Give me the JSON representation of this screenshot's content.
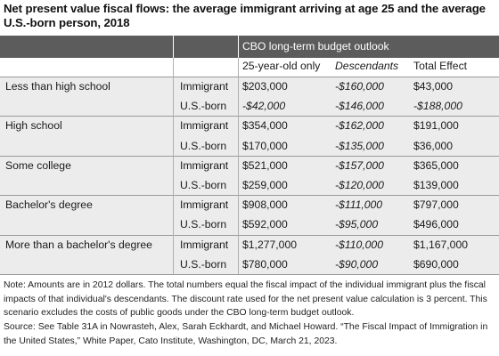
{
  "title": "Net present value fiscal flows: the average immigrant arriving at age 25 and the average U.S.-born person, 2018",
  "header": {
    "group_label": "CBO long-term budget outlook",
    "col_25": "25-year-old only",
    "col_desc": "Descendants",
    "col_total": "Total Effect"
  },
  "rows": [
    {
      "category": "Less than high school",
      "group": "Immigrant",
      "v25": "$203,000",
      "desc": "-$160,000",
      "total": "$43,000",
      "italic25": false,
      "italictotal": false
    },
    {
      "category": "",
      "group": "U.S.-born",
      "v25": "-$42,000",
      "desc": "-$146,000",
      "total": "-$188,000",
      "italic25": true,
      "italictotal": true
    },
    {
      "category": "High school",
      "group": "Immigrant",
      "v25": "$354,000",
      "desc": "-$162,000",
      "total": "$191,000",
      "italic25": false,
      "italictotal": false
    },
    {
      "category": "",
      "group": "U.S.-born",
      "v25": "$170,000",
      "desc": "-$135,000",
      "total": "$36,000",
      "italic25": false,
      "italictotal": false
    },
    {
      "category": "Some college",
      "group": "Immigrant",
      "v25": "$521,000",
      "desc": "-$157,000",
      "total": "$365,000",
      "italic25": false,
      "italictotal": false
    },
    {
      "category": "",
      "group": "U.S.-born",
      "v25": "$259,000",
      "desc": "-$120,000",
      "total": "$139,000",
      "italic25": false,
      "italictotal": false
    },
    {
      "category": "Bachelor's degree",
      "group": "Immigrant",
      "v25": "$908,000",
      "desc": "-$111,000",
      "total": "$797,000",
      "italic25": false,
      "italictotal": false
    },
    {
      "category": "",
      "group": "U.S.-born",
      "v25": "$592,000",
      "desc": "-$95,000",
      "total": "$496,000",
      "italic25": false,
      "italictotal": false
    },
    {
      "category": "More than a bachelor's degree",
      "group": "Immigrant",
      "v25": "$1,277,000",
      "desc": "-$110,000",
      "total": "$1,167,000",
      "italic25": false,
      "italictotal": false
    },
    {
      "category": "",
      "group": "U.S.-born",
      "v25": "$780,000",
      "desc": "-$90,000",
      "total": "$690,000",
      "italic25": false,
      "italictotal": false
    }
  ],
  "notes": {
    "note": "Note: Amounts are in 2012 dollars. The total numbers equal the fiscal impact of the individual immigrant plus the fiscal impacts of that individual's descendants. The discount rate used for the net present value calculation is 3 percent. This scenario excludes the costs of public goods under the CBO long-term budget outlook.",
    "source": "Source: See Table 31A in Nowrasteh, Alex, Sarah Eckhardt, and Michael Howard. “The Fiscal Impact of Immigration in the United States,” White Paper, Cato Institute, Washington, DC, March 21, 2023."
  }
}
